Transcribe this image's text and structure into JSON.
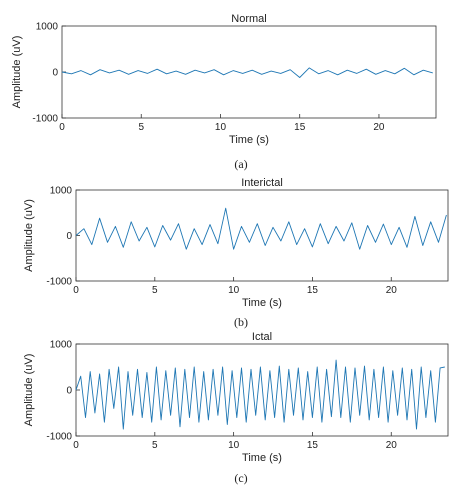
{
  "figure": {
    "caption_a": "(a)",
    "caption_b": "(b)",
    "caption_c": "(c)"
  },
  "chart_data": [
    {
      "type": "line",
      "title": "Normal",
      "xlabel": "Time (s)",
      "ylabel": "Amplitude (uV)",
      "xlim": [
        0,
        23.6
      ],
      "ylim": [
        -1000,
        1000
      ],
      "xticks": [
        0,
        5,
        10,
        15,
        20
      ],
      "yticks": [
        1000,
        0,
        -1000
      ],
      "xtick_labels": [
        "0",
        "5",
        "10",
        "15",
        "20"
      ],
      "ytick_labels": [
        "1000",
        "0",
        "-1000"
      ],
      "line_color": "#1f77b4",
      "grid": false,
      "series": [
        {
          "x": [
            0.0,
            0.6,
            1.2,
            1.8,
            2.4,
            3.0,
            3.6,
            4.2,
            4.8,
            5.4,
            6.0,
            6.6,
            7.2,
            7.8,
            8.4,
            9.0,
            9.6,
            10.2,
            10.8,
            11.4,
            12.0,
            12.6,
            13.2,
            13.8,
            14.4,
            15.0,
            15.6,
            16.2,
            16.8,
            17.4,
            18.0,
            18.6,
            19.2,
            19.8,
            20.4,
            21.0,
            21.6,
            22.2,
            22.8,
            23.4
          ],
          "values": [
            0,
            -40,
            30,
            -60,
            50,
            -20,
            40,
            -50,
            30,
            -30,
            60,
            -40,
            20,
            -50,
            40,
            -20,
            50,
            -60,
            30,
            -30,
            40,
            -50,
            20,
            -30,
            50,
            -120,
            90,
            -40,
            30,
            -60,
            40,
            -30,
            60,
            -50,
            30,
            -40,
            80,
            -60,
            40,
            -20
          ]
        }
      ]
    },
    {
      "type": "line",
      "title": "Interictal",
      "xlabel": "Time (s)",
      "ylabel": "Amplitude (uV)",
      "xlim": [
        0,
        23.6
      ],
      "ylim": [
        -1000,
        1000
      ],
      "xticks": [
        0,
        5,
        10,
        15,
        20
      ],
      "yticks": [
        1000,
        0,
        -1000
      ],
      "xtick_labels": [
        "0",
        "5",
        "10",
        "15",
        "20"
      ],
      "ytick_labels": [
        "1000",
        "0",
        "-1000"
      ],
      "line_color": "#1f77b4",
      "grid": false,
      "series": [
        {
          "x": [
            0.0,
            0.5,
            1.0,
            1.5,
            2.0,
            2.5,
            3.0,
            3.5,
            4.0,
            4.5,
            5.0,
            5.5,
            6.0,
            6.5,
            7.0,
            7.5,
            8.0,
            8.5,
            9.0,
            9.5,
            10.0,
            10.5,
            11.0,
            11.5,
            12.0,
            12.5,
            13.0,
            13.5,
            14.0,
            14.5,
            15.0,
            15.5,
            16.0,
            16.5,
            17.0,
            17.5,
            18.0,
            18.5,
            19.0,
            19.5,
            20.0,
            20.5,
            21.0,
            21.5,
            22.0,
            22.5,
            23.0,
            23.5
          ],
          "values": [
            0,
            150,
            -200,
            380,
            -150,
            200,
            -260,
            300,
            -120,
            180,
            -250,
            220,
            -100,
            260,
            -300,
            150,
            -200,
            240,
            -180,
            600,
            -300,
            200,
            -150,
            260,
            -220,
            180,
            -120,
            300,
            -200,
            150,
            -250,
            260,
            -180,
            200,
            -120,
            280,
            -300,
            220,
            -150,
            250,
            -200,
            180,
            -260,
            420,
            -220,
            300,
            -150,
            450
          ]
        }
      ]
    },
    {
      "type": "line",
      "title": "Ictal",
      "xlabel": "Time (s)",
      "ylabel": "Amplitude (uV)",
      "xlim": [
        0,
        23.6
      ],
      "ylim": [
        -1000,
        1000
      ],
      "xticks": [
        0,
        5,
        10,
        15,
        20
      ],
      "yticks": [
        1000,
        0,
        -1000
      ],
      "xtick_labels": [
        "0",
        "5",
        "10",
        "15",
        "20"
      ],
      "ytick_labels": [
        "1000",
        "0",
        "-1000"
      ],
      "line_color": "#1f77b4",
      "grid": false,
      "series": [
        {
          "x": [
            0.0,
            0.3,
            0.6,
            0.9,
            1.2,
            1.5,
            1.8,
            2.1,
            2.4,
            2.7,
            3.0,
            3.3,
            3.6,
            3.9,
            4.2,
            4.5,
            4.8,
            5.1,
            5.4,
            5.7,
            6.0,
            6.3,
            6.6,
            6.9,
            7.2,
            7.5,
            7.8,
            8.1,
            8.4,
            8.7,
            9.0,
            9.3,
            9.6,
            9.9,
            10.2,
            10.5,
            10.8,
            11.1,
            11.4,
            11.7,
            12.0,
            12.3,
            12.6,
            12.9,
            13.2,
            13.5,
            13.8,
            14.1,
            14.4,
            14.7,
            15.0,
            15.3,
            15.6,
            15.9,
            16.2,
            16.5,
            16.8,
            17.1,
            17.4,
            17.7,
            18.0,
            18.3,
            18.6,
            18.9,
            19.2,
            19.5,
            19.8,
            20.1,
            20.4,
            20.7,
            21.0,
            21.3,
            21.6,
            21.9,
            22.2,
            22.5,
            22.8,
            23.1,
            23.4
          ],
          "values": [
            0,
            300,
            -600,
            400,
            -500,
            350,
            -700,
            450,
            -400,
            500,
            -850,
            400,
            -550,
            450,
            -600,
            380,
            -700,
            500,
            -650,
            420,
            -550,
            480,
            -800,
            450,
            -600,
            500,
            -700,
            400,
            -650,
            450,
            -550,
            500,
            -750,
            420,
            -600,
            480,
            -700,
            450,
            -550,
            500,
            -650,
            420,
            -600,
            520,
            -700,
            450,
            -550,
            480,
            -650,
            400,
            -600,
            500,
            -700,
            450,
            -580,
            650,
            -600,
            500,
            -700,
            480,
            -550,
            520,
            -650,
            450,
            -600,
            500,
            -700,
            420,
            -550,
            480,
            -650,
            450,
            -850,
            500,
            -600,
            420,
            -700,
            480,
            500
          ]
        }
      ]
    }
  ]
}
